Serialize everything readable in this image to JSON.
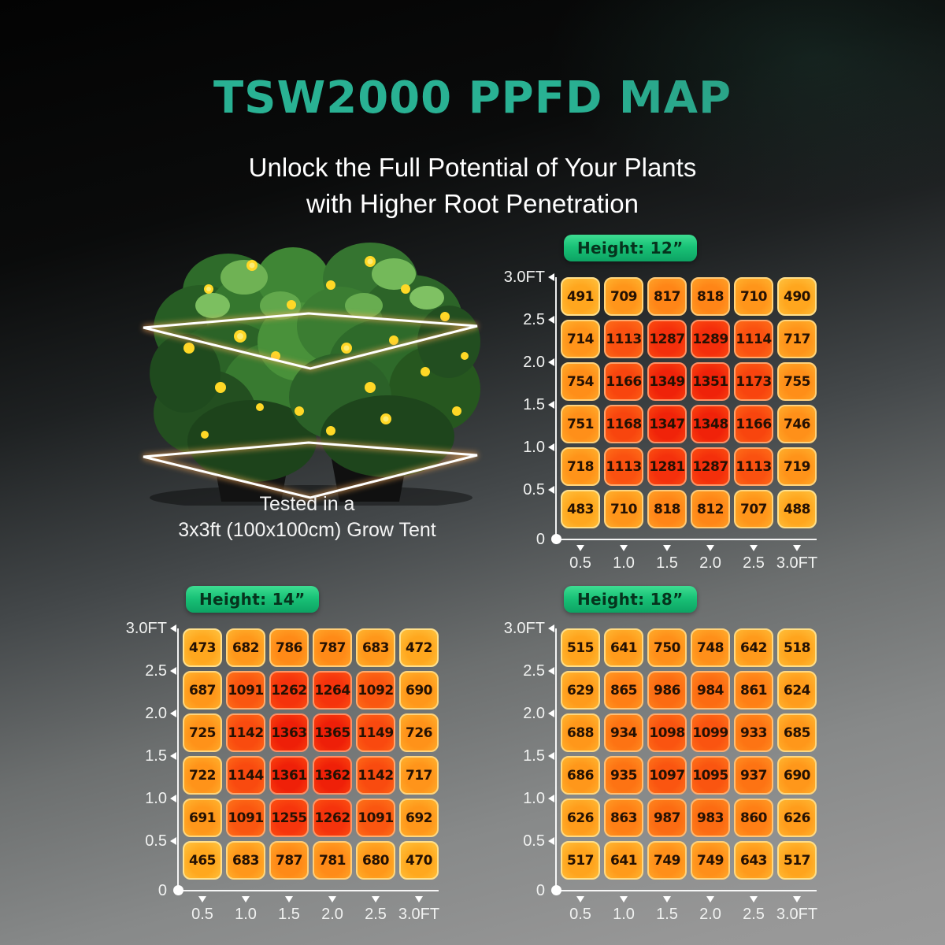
{
  "page": {
    "title": "TSW2000 PPFD MAP",
    "subtitle_line1": "Unlock the Full Potential of Your Plants",
    "subtitle_line2": "with Higher Root Penetration",
    "caption_line1": "Tested in a",
    "caption_line2": "3x3ft (100x100cm) Grow Tent"
  },
  "colors": {
    "title": "#29b193",
    "badge_top": "#3edd92",
    "badge_bottom": "#0da363",
    "badge_text": "#06331d",
    "axis": "#ffffff",
    "cell_low": "#ffc430",
    "cell_high": "#ee2008"
  },
  "chart_data": [
    {
      "type": "heatmap",
      "title": "Height: 12”",
      "x_ticks": [
        "0.5",
        "1.0",
        "1.5",
        "2.0",
        "2.5",
        "3.0FT"
      ],
      "y_ticks": [
        "3.0FT",
        "2.5",
        "2.0",
        "1.5",
        "1.0",
        "0.5",
        "0"
      ],
      "values": [
        [
          491,
          709,
          817,
          818,
          710,
          490
        ],
        [
          714,
          1113,
          1287,
          1289,
          1114,
          717
        ],
        [
          754,
          1166,
          1349,
          1351,
          1173,
          755
        ],
        [
          751,
          1168,
          1347,
          1348,
          1166,
          746
        ],
        [
          718,
          1113,
          1281,
          1287,
          1113,
          719
        ],
        [
          483,
          710,
          818,
          812,
          707,
          488
        ]
      ]
    },
    {
      "type": "heatmap",
      "title": "Height: 14”",
      "x_ticks": [
        "0.5",
        "1.0",
        "1.5",
        "2.0",
        "2.5",
        "3.0FT"
      ],
      "y_ticks": [
        "3.0FT",
        "2.5",
        "2.0",
        "1.5",
        "1.0",
        "0.5",
        "0"
      ],
      "values": [
        [
          473,
          682,
          786,
          787,
          683,
          472
        ],
        [
          687,
          1091,
          1262,
          1264,
          1092,
          690
        ],
        [
          725,
          1142,
          1363,
          1365,
          1149,
          726
        ],
        [
          722,
          1144,
          1361,
          1362,
          1142,
          717
        ],
        [
          691,
          1091,
          1255,
          1262,
          1091,
          692
        ],
        [
          465,
          683,
          787,
          781,
          680,
          470
        ]
      ]
    },
    {
      "type": "heatmap",
      "title": "Height: 18”",
      "x_ticks": [
        "0.5",
        "1.0",
        "1.5",
        "2.0",
        "2.5",
        "3.0FT"
      ],
      "y_ticks": [
        "3.0FT",
        "2.5",
        "2.0",
        "1.5",
        "1.0",
        "0.5",
        "0"
      ],
      "values": [
        [
          515,
          641,
          750,
          748,
          642,
          518
        ],
        [
          629,
          865,
          986,
          984,
          861,
          624
        ],
        [
          688,
          934,
          1098,
          1099,
          933,
          685
        ],
        [
          686,
          935,
          1097,
          1095,
          937,
          690
        ],
        [
          626,
          863,
          987,
          983,
          860,
          626
        ],
        [
          517,
          641,
          749,
          749,
          643,
          517
        ]
      ]
    }
  ]
}
